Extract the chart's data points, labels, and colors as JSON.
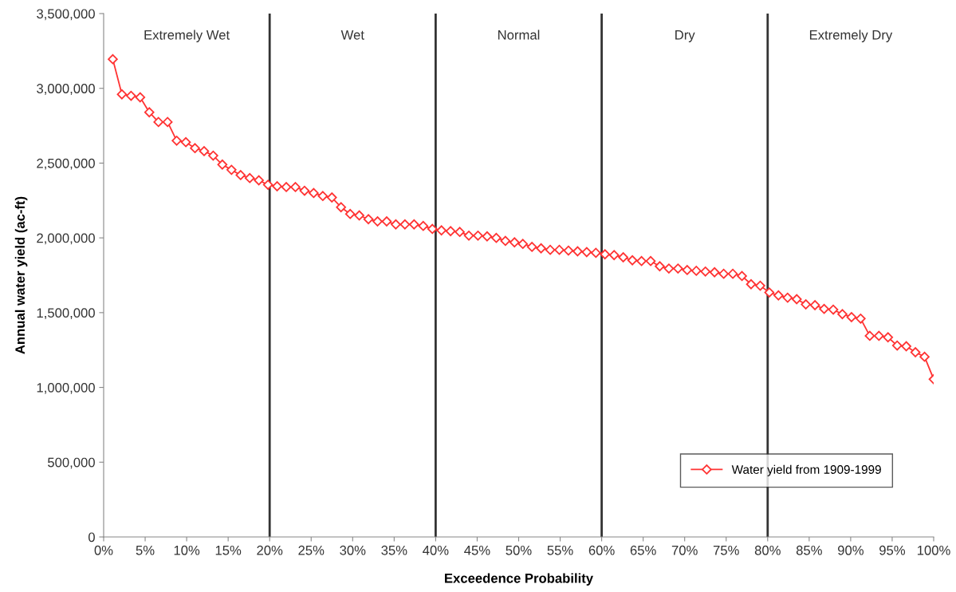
{
  "chart_data": {
    "type": "line",
    "xlabel": "Exceedence Probability",
    "ylabel": "Annual water yield (ac-ft)",
    "x": [
      1.1,
      2.2,
      3.3,
      4.4,
      5.5,
      6.6,
      7.7,
      8.8,
      9.9,
      11.0,
      12.1,
      13.2,
      14.3,
      15.4,
      16.5,
      17.6,
      18.7,
      19.8,
      20.9,
      22.0,
      23.1,
      24.2,
      25.3,
      26.4,
      27.5,
      28.6,
      29.7,
      30.8,
      31.9,
      33.0,
      34.1,
      35.2,
      36.3,
      37.4,
      38.5,
      39.6,
      40.7,
      41.8,
      42.9,
      44.0,
      45.1,
      46.2,
      47.3,
      48.4,
      49.5,
      50.5,
      51.6,
      52.7,
      53.8,
      54.9,
      56.0,
      57.1,
      58.2,
      59.3,
      60.4,
      61.5,
      62.6,
      63.7,
      64.8,
      65.9,
      67.0,
      68.1,
      69.2,
      70.3,
      71.4,
      72.5,
      73.6,
      74.7,
      75.8,
      76.9,
      78.0,
      79.1,
      80.2,
      81.3,
      82.4,
      83.5,
      84.6,
      85.7,
      86.8,
      87.9,
      89.0,
      90.1,
      91.2,
      92.3,
      93.4,
      94.5,
      95.6,
      96.7,
      97.8,
      98.9,
      100.0
    ],
    "series": [
      {
        "name": "Water yield from 1909-1999",
        "color": "#ff3333",
        "values": [
          3195000,
          2960000,
          2950000,
          2940000,
          2840000,
          2775000,
          2775000,
          2650000,
          2640000,
          2600000,
          2580000,
          2550000,
          2490000,
          2455000,
          2420000,
          2400000,
          2385000,
          2355000,
          2345000,
          2340000,
          2340000,
          2315000,
          2300000,
          2280000,
          2270000,
          2205000,
          2160000,
          2150000,
          2125000,
          2110000,
          2110000,
          2090000,
          2090000,
          2090000,
          2080000,
          2060000,
          2050000,
          2045000,
          2040000,
          2015000,
          2015000,
          2010000,
          2000000,
          1980000,
          1970000,
          1960000,
          1940000,
          1930000,
          1920000,
          1920000,
          1915000,
          1910000,
          1905000,
          1900000,
          1890000,
          1885000,
          1870000,
          1850000,
          1845000,
          1845000,
          1810000,
          1795000,
          1795000,
          1785000,
          1780000,
          1775000,
          1770000,
          1760000,
          1760000,
          1745000,
          1690000,
          1680000,
          1635000,
          1615000,
          1600000,
          1590000,
          1555000,
          1550000,
          1525000,
          1520000,
          1490000,
          1470000,
          1460000,
          1345000,
          1345000,
          1335000,
          1280000,
          1275000,
          1235000,
          1205000,
          1055000
        ]
      }
    ],
    "xlim": [
      0,
      100
    ],
    "xticks": [
      {
        "value": 0,
        "label": "0%"
      },
      {
        "value": 5,
        "label": "5%"
      },
      {
        "value": 10,
        "label": "10%"
      },
      {
        "value": 15,
        "label": "15%"
      },
      {
        "value": 20,
        "label": "20%"
      },
      {
        "value": 25,
        "label": "25%"
      },
      {
        "value": 30,
        "label": "30%"
      },
      {
        "value": 35,
        "label": "35%"
      },
      {
        "value": 40,
        "label": "40%"
      },
      {
        "value": 45,
        "label": "45%"
      },
      {
        "value": 50,
        "label": "50%"
      },
      {
        "value": 55,
        "label": "55%"
      },
      {
        "value": 60,
        "label": "60%"
      },
      {
        "value": 65,
        "label": "65%"
      },
      {
        "value": 70,
        "label": "70%"
      },
      {
        "value": 75,
        "label": "75%"
      },
      {
        "value": 80,
        "label": "80%"
      },
      {
        "value": 85,
        "label": "85%"
      },
      {
        "value": 90,
        "label": "90%"
      },
      {
        "value": 95,
        "label": "95%"
      },
      {
        "value": 100,
        "label": "100%"
      }
    ],
    "ylim": [
      0,
      3500000
    ],
    "yticks": [
      {
        "value": 0,
        "label": "0"
      },
      {
        "value": 500000,
        "label": "500,000"
      },
      {
        "value": 1000000,
        "label": "1,000,000"
      },
      {
        "value": 1500000,
        "label": "1,500,000"
      },
      {
        "value": 2000000,
        "label": "2,000,000"
      },
      {
        "value": 2500000,
        "label": "2,500,000"
      },
      {
        "value": 3000000,
        "label": "3,000,000"
      },
      {
        "value": 3500000,
        "label": "3,500,000"
      }
    ],
    "ref_lines": [
      {
        "axis": "x",
        "value": 20,
        "color": "#333333"
      },
      {
        "axis": "x",
        "value": 40,
        "color": "#333333"
      },
      {
        "axis": "x",
        "value": 60,
        "color": "#333333"
      },
      {
        "axis": "x",
        "value": 80,
        "color": "#333333"
      }
    ],
    "annotations": [
      "Extremely Wet",
      "Wet",
      "Normal",
      "Dry",
      "Extremely Dry"
    ],
    "grid": false,
    "legend": "bottom right",
    "marker": "diamond",
    "line_style": "solid"
  }
}
